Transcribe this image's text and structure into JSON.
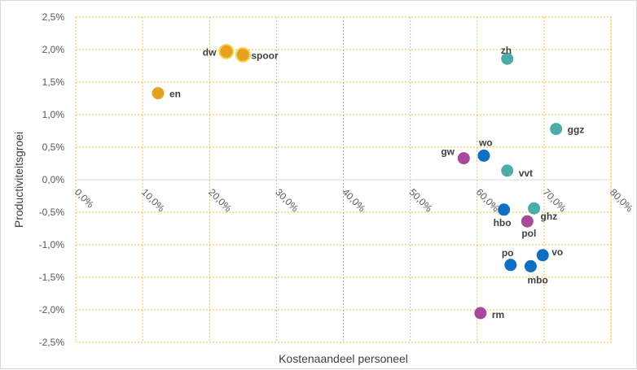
{
  "chart_data": {
    "type": "scatter",
    "title": "",
    "xlabel": "Kostenaandeel personeel",
    "ylabel": "Productiviteitsgroei",
    "xlim": [
      0,
      80
    ],
    "ylim": [
      -2.5,
      2.5
    ],
    "x_ticks": [
      "0,0%",
      "10,0%",
      "20,0%",
      "30,0%",
      "40,0%",
      "50,0%",
      "60,0%",
      "70,0%",
      "80,0%"
    ],
    "y_ticks": [
      "2,5%",
      "2,0%",
      "1,5%",
      "1,0%",
      "0,5%",
      "0,0%",
      "-0,5%",
      "-1,0%",
      "-1,5%",
      "-2,0%",
      "-2,5%"
    ],
    "grid": true,
    "colors": {
      "orange": "#E5A21E",
      "teal": "#4BACA8",
      "purple": "#A54A96",
      "blue": "#0E6FC3",
      "grid": "#F2C12E"
    },
    "points": [
      {
        "label": "dw",
        "x": 22.5,
        "y": 1.97,
        "color": "orange",
        "highlight": true
      },
      {
        "label": "spoor",
        "x": 25.0,
        "y": 1.92,
        "color": "orange",
        "highlight": true
      },
      {
        "label": "en",
        "x": 12.3,
        "y": 1.33,
        "color": "orange"
      },
      {
        "label": "zh",
        "x": 64.5,
        "y": 1.86,
        "color": "teal"
      },
      {
        "label": "ggz",
        "x": 71.8,
        "y": 0.78,
        "color": "teal"
      },
      {
        "label": "vvt",
        "x": 64.5,
        "y": 0.14,
        "color": "teal"
      },
      {
        "label": "ghz",
        "x": 68.5,
        "y": -0.44,
        "color": "teal"
      },
      {
        "label": "gw",
        "x": 58.0,
        "y": 0.33,
        "color": "purple"
      },
      {
        "label": "pol",
        "x": 67.5,
        "y": -0.64,
        "color": "purple"
      },
      {
        "label": "rm",
        "x": 60.5,
        "y": -2.05,
        "color": "purple"
      },
      {
        "label": "wo",
        "x": 61.0,
        "y": 0.37,
        "color": "blue"
      },
      {
        "label": "hbo",
        "x": 64.0,
        "y": -0.46,
        "color": "blue"
      },
      {
        "label": "vo",
        "x": 69.8,
        "y": -1.16,
        "color": "blue"
      },
      {
        "label": "po",
        "x": 65.0,
        "y": -1.31,
        "color": "blue"
      },
      {
        "label": "mbo",
        "x": 68.0,
        "y": -1.33,
        "color": "blue"
      }
    ]
  }
}
